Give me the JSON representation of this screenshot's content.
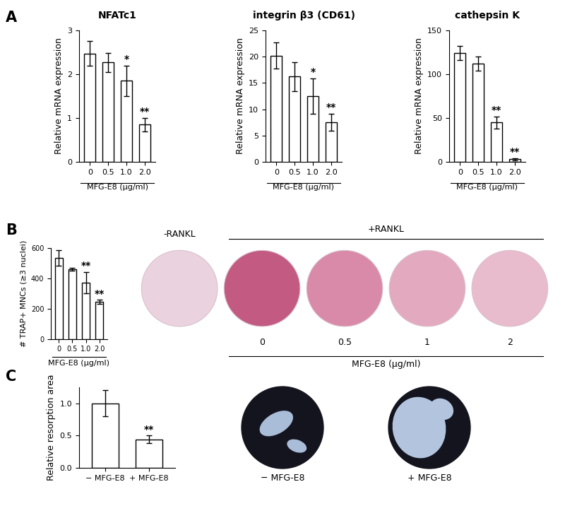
{
  "chart_data": [
    {
      "type": "bar",
      "title": "NFATc1",
      "ylabel": "Relative mRNA expression",
      "xlabel": "MFG-E8 (μg/ml)",
      "categories": [
        "0",
        "0.5",
        "1.0",
        "2.0"
      ],
      "values": [
        2.47,
        2.27,
        1.85,
        0.85
      ],
      "errors": [
        0.28,
        0.22,
        0.35,
        0.15
      ],
      "significance": [
        null,
        null,
        "*",
        "**"
      ],
      "color": "#ffffff",
      "ylim": [
        0,
        3
      ],
      "yticks": [
        0,
        1,
        2,
        3
      ]
    },
    {
      "type": "bar",
      "title": "integrin β3 (CD61)",
      "ylabel": "Relative mRNA expression",
      "xlabel": "MFG-E8 (μg/ml)",
      "categories": [
        "0",
        "0.5",
        "1.0",
        "2.0"
      ],
      "values": [
        20.2,
        16.2,
        12.5,
        7.5
      ],
      "errors": [
        2.5,
        2.8,
        3.4,
        1.6
      ],
      "significance": [
        null,
        null,
        "*",
        "**"
      ],
      "color": "#ffffff",
      "ylim": [
        0,
        25
      ],
      "yticks": [
        0,
        5,
        10,
        15,
        20,
        25
      ]
    },
    {
      "type": "bar",
      "title": "cathepsin K",
      "ylabel": "Relative mRNA expression",
      "xlabel": "MFG-E8 (μg/ml)",
      "categories": [
        "0",
        "0.5",
        "1.0",
        "2.0"
      ],
      "values": [
        124,
        112,
        45,
        3
      ],
      "errors": [
        8,
        8,
        7,
        1
      ],
      "significance": [
        null,
        null,
        "**",
        "**"
      ],
      "color": "#ffffff",
      "ylim": [
        0,
        150
      ],
      "yticks": [
        0,
        50,
        100,
        150
      ]
    },
    {
      "type": "bar",
      "ylabel": "# TRAP+ MNCs (≥3 nuclei)",
      "xlabel": "MFG-E8 (μg/ml)",
      "categories": [
        "0",
        "0.5",
        "1.0",
        "2.0"
      ],
      "values": [
        535,
        458,
        373,
        245
      ],
      "errors": [
        50,
        10,
        70,
        15
      ],
      "significance": [
        null,
        null,
        "**",
        "**"
      ],
      "color": "#ffffff",
      "ylim": [
        0,
        600
      ],
      "yticks": [
        0,
        200,
        400,
        600
      ]
    },
    {
      "type": "bar",
      "ylabel": "Relative resorption area",
      "categories": [
        "− MFG-E8",
        "+ MFG-E8"
      ],
      "values": [
        1.0,
        0.44
      ],
      "errors": [
        0.2,
        0.06
      ],
      "significance": [
        null,
        "**"
      ],
      "color": "#ffffff",
      "ylim": [
        0,
        1.25
      ],
      "yticks": [
        {
          "value": 0,
          "label": "0.0"
        },
        {
          "value": 0.5,
          "label": "0.5"
        },
        {
          "value": 1.0,
          "label": "1.0"
        }
      ]
    }
  ],
  "panel_labels": [
    "A",
    "B",
    "C"
  ],
  "trap_wells": {
    "group_labels": [
      "-RANKL",
      "+RANKL"
    ],
    "well_labels": [
      null,
      "0",
      "0.5",
      "1",
      "2"
    ],
    "xlabel": "MFG-E8 (μg/ml)"
  },
  "resorption_images": {
    "labels": [
      "− MFG-E8",
      "+ MFG-E8"
    ]
  }
}
